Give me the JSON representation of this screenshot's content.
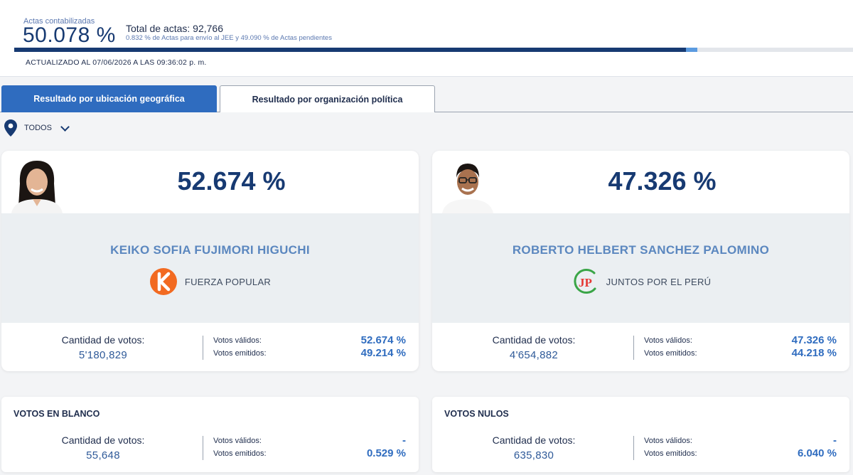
{
  "header": {
    "actas_label": "Actas contabilizadas",
    "actas_pct": "50.078 %",
    "total_actas": "Total de actas: 92,766",
    "actas_detail": "0.832 % de Actas para envío al JEE y 49.090 % de Actas pendientes",
    "updated": "ACTUALIZADO AL 07/06/2026 A LAS 09:36:02 p. m.",
    "progress": {
      "counted_pct": 50.078,
      "jee_pct": 0.832
    }
  },
  "tabs": [
    {
      "label": "Resultado por ubicación geográfica",
      "active": true
    },
    {
      "label": "Resultado por organización política",
      "active": false
    }
  ],
  "filter": {
    "icon": "location-pin-icon",
    "label": "TODOS"
  },
  "labels": {
    "votes_label": "Cantidad de votos:",
    "valid_label": "Votos válidos:",
    "emitted_label": "Votos emitidos:"
  },
  "candidates": [
    {
      "pct": "52.674 %",
      "name": "KEIKO SOFIA FUJIMORI HIGUCHI",
      "party": "FUERZA POPULAR",
      "party_logo_text": "K",
      "party_color": "#f26a21",
      "votes": "5'180,829",
      "valid_pct": "52.674 %",
      "emitted_pct": "49.214 %"
    },
    {
      "pct": "47.326 %",
      "name": "ROBERTO HELBERT SANCHEZ PALOMINO",
      "party": "JUNTOS POR EL PERÚ",
      "party_logo_text": "JP",
      "party_color": "#e53935",
      "votes": "4'654,882",
      "valid_pct": "47.326 %",
      "emitted_pct": "44.218 %"
    }
  ],
  "blank": {
    "title": "VOTOS EN BLANCO",
    "votes": "55,648",
    "valid_pct": "-",
    "emitted_pct": "0.529 %"
  },
  "null": {
    "title": "VOTOS NULOS",
    "votes": "635,830",
    "valid_pct": "-",
    "emitted_pct": "6.040 %"
  }
}
